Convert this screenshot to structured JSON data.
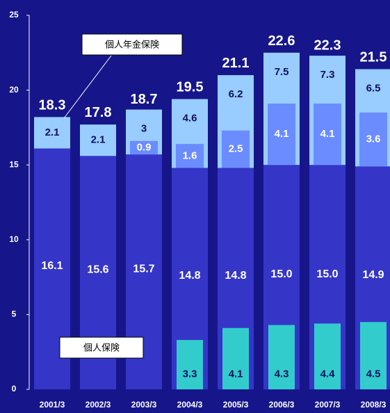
{
  "chart_data": {
    "type": "bar",
    "categories": [
      "2001/3",
      "2002/3",
      "2003/3",
      "2004/3",
      "2005/3",
      "2006/3",
      "2007/3",
      "2008/3"
    ],
    "series": [
      {
        "name": "個人保険",
        "color": "#3535c8",
        "values": [
          16.1,
          15.6,
          15.7,
          14.8,
          14.8,
          15.0,
          15.0,
          14.9
        ],
        "value_labels": [
          "16.1",
          "15.6",
          "15.7",
          "14.8",
          "14.8",
          "15.0",
          "15.0",
          "14.9"
        ]
      },
      {
        "name": "個人年金保険",
        "color": "#99ccff",
        "values": [
          2.1,
          2.1,
          3.0,
          4.6,
          6.2,
          7.5,
          7.3,
          6.5
        ]
      },
      {
        "color": "#6b8cff",
        "values": [
          null,
          null,
          0.9,
          1.6,
          2.5,
          4.1,
          4.1,
          3.6
        ]
      },
      {
        "color": "#33cccc",
        "values": [
          null,
          null,
          null,
          3.3,
          4.1,
          4.3,
          4.4,
          4.5
        ]
      }
    ],
    "totals": [
      18.3,
      17.8,
      18.7,
      19.5,
      21.1,
      22.6,
      22.3,
      21.5
    ],
    "ylim": [
      0,
      25
    ],
    "yticks": [
      0,
      5,
      10,
      15,
      20,
      25
    ]
  }
}
